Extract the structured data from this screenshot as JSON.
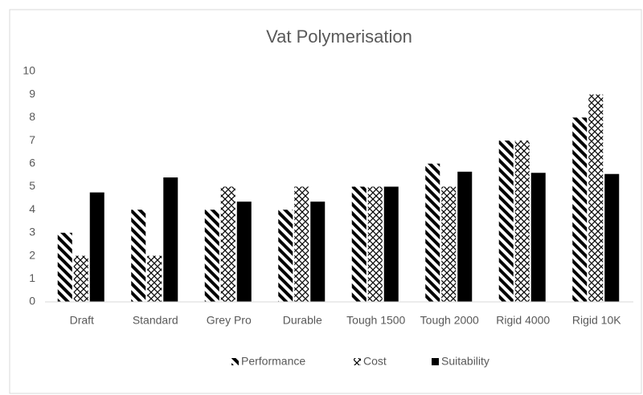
{
  "chart_data": {
    "type": "bar",
    "title": "Vat Polymerisation",
    "categories": [
      "Draft",
      "Standard",
      "Grey Pro",
      "Durable",
      "Tough 1500",
      "Tough 2000",
      "Rigid 4000",
      "Rigid 10K"
    ],
    "series": [
      {
        "name": "Performance",
        "color": "#000000",
        "pattern": "stripes",
        "values": [
          3,
          4,
          4,
          4,
          5,
          6,
          7,
          8
        ]
      },
      {
        "name": "Cost",
        "color": "#000000",
        "pattern": "lattice",
        "values": [
          2,
          2,
          5,
          5,
          5,
          5,
          7,
          9
        ]
      },
      {
        "name": "Suitability",
        "color": "#000000",
        "pattern": "solid",
        "values": [
          4.75,
          5.4,
          4.35,
          4.35,
          5,
          5.65,
          5.6,
          5.55
        ]
      }
    ],
    "ylim": [
      0,
      10
    ],
    "yticks": [
      0,
      1,
      2,
      3,
      4,
      5,
      6,
      7,
      8,
      9,
      10
    ],
    "grid": false,
    "legend": "bottom"
  }
}
